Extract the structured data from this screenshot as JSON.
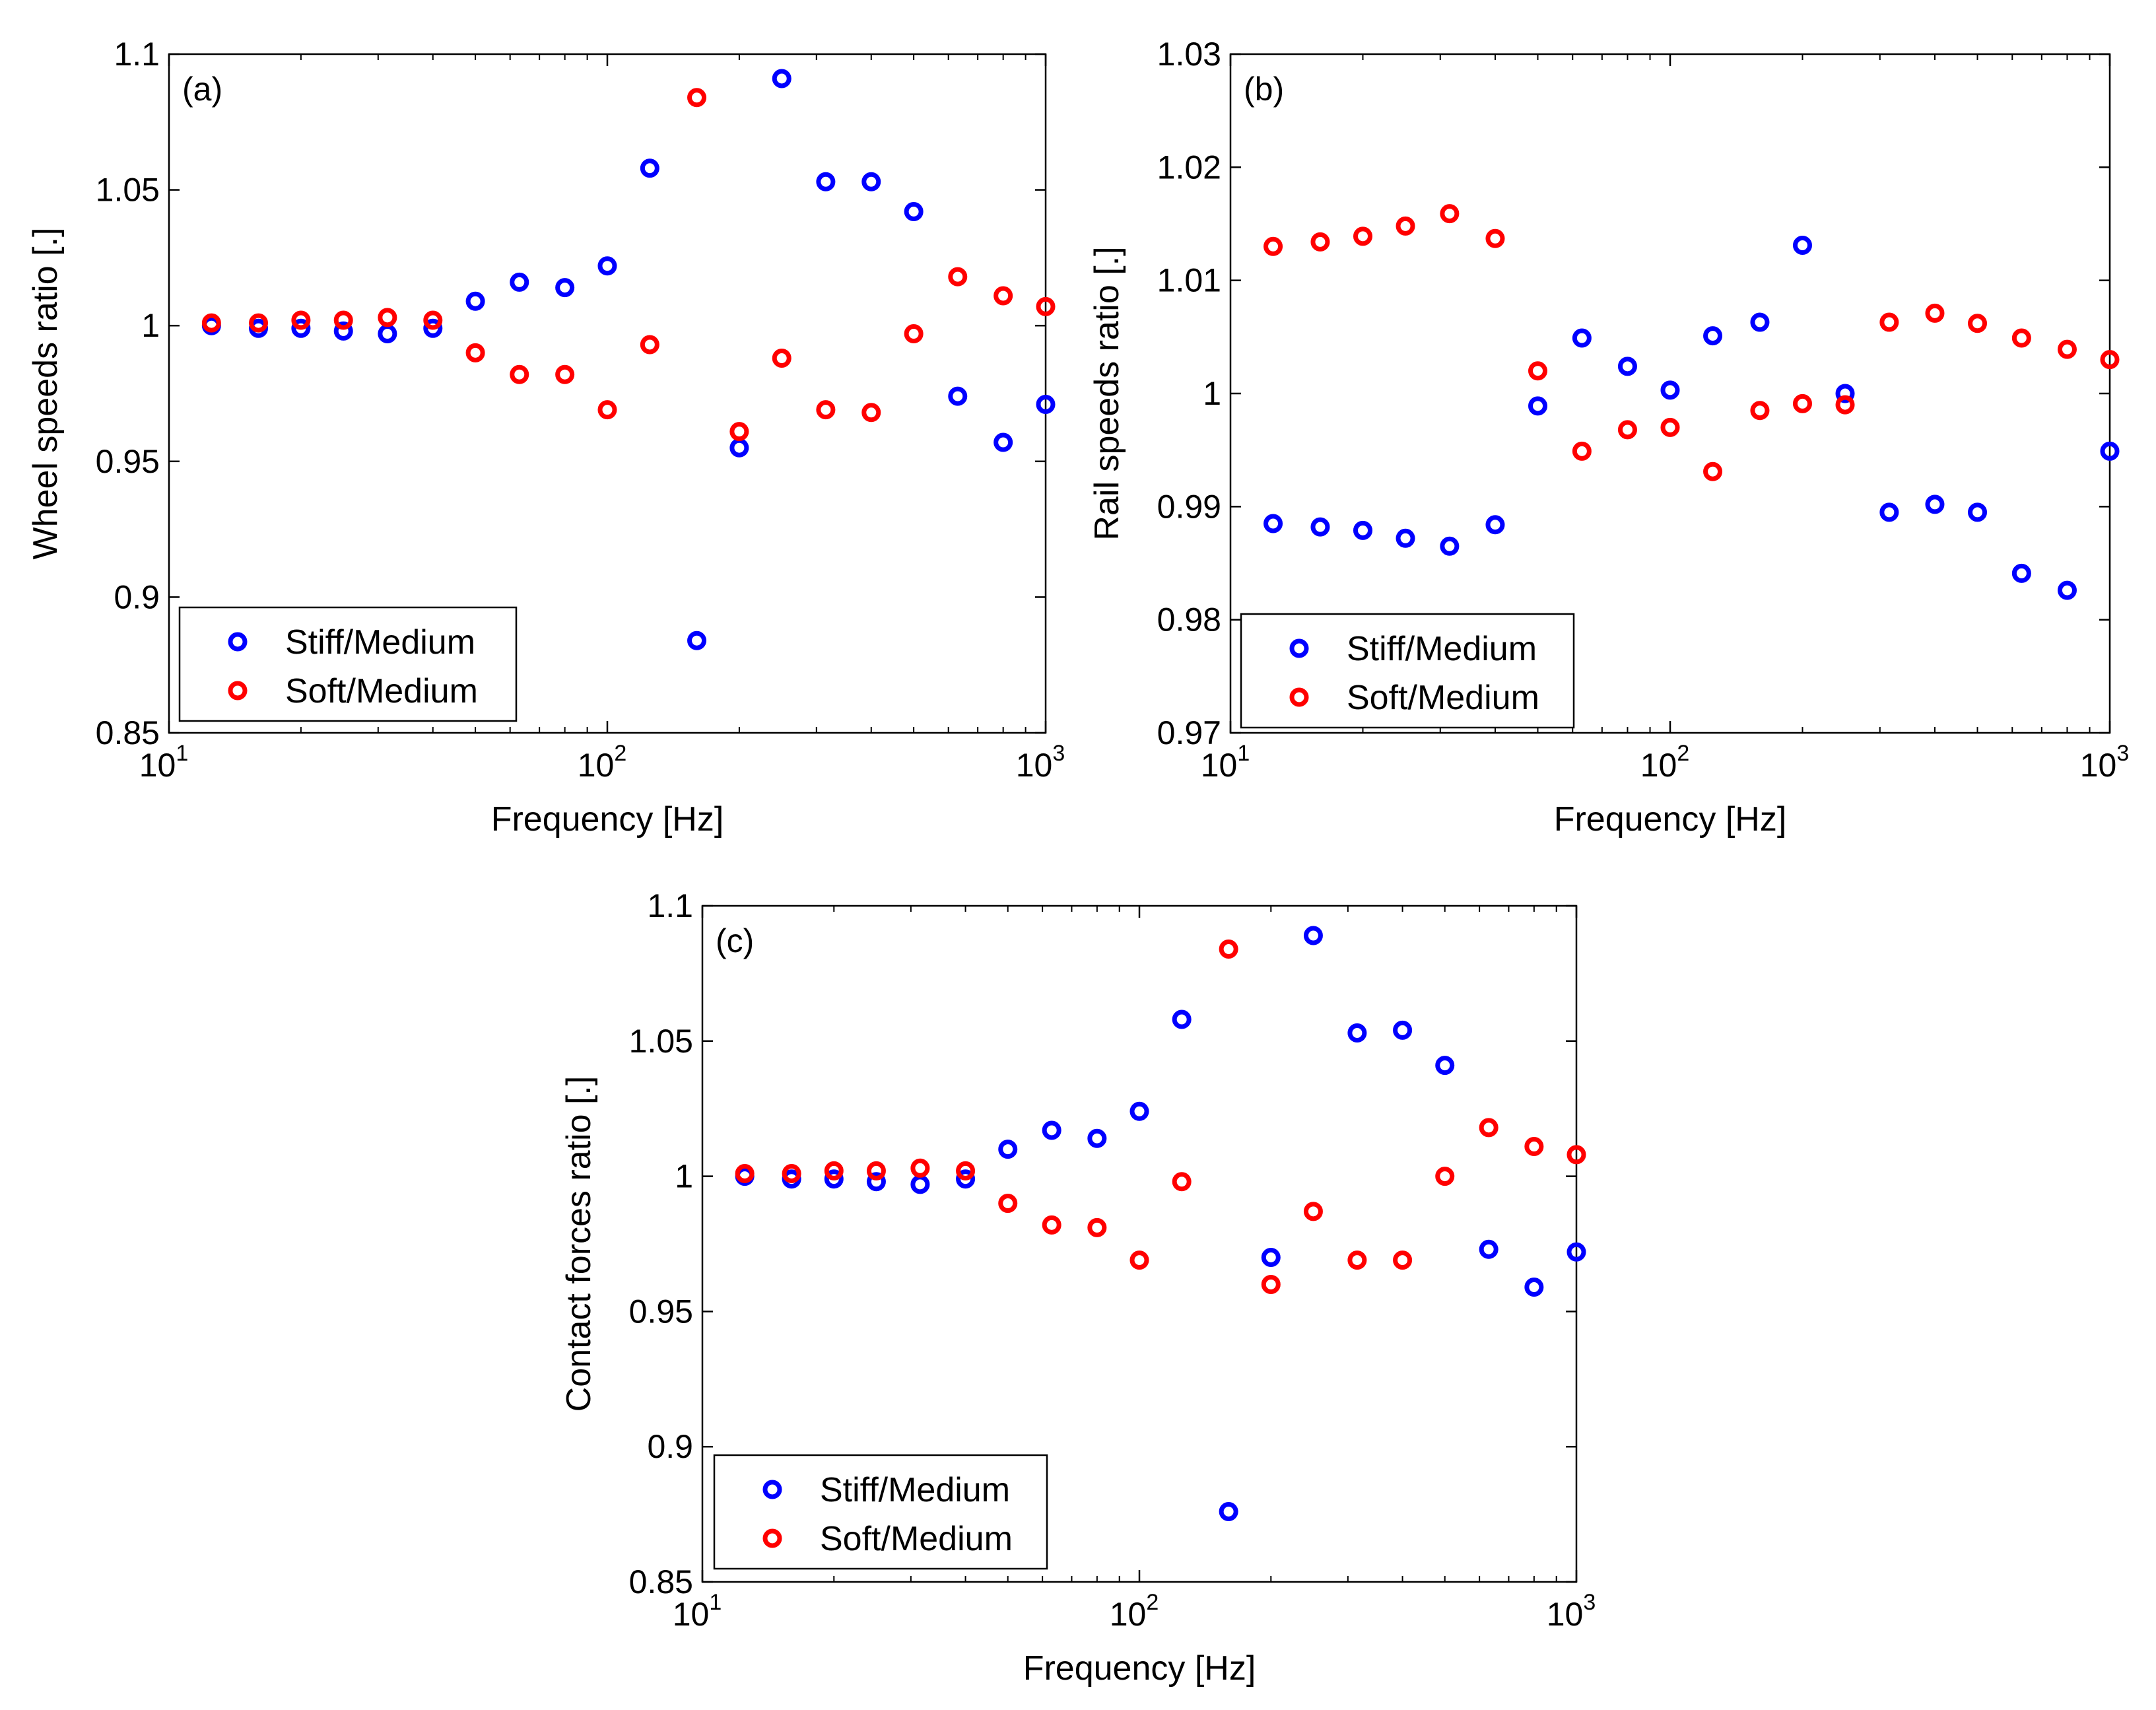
{
  "figure": {
    "colors": {
      "stiff": "#0000ff",
      "soft": "#ff0000",
      "axes": "#000000"
    }
  },
  "chart_data": [
    {
      "type": "scatter",
      "id": "a",
      "panel_label": "(a)",
      "xlabel": "Frequency  [Hz]",
      "ylabel": "Wheel speeds ratio [.]",
      "xscale": "log",
      "xlim": [
        10,
        1000
      ],
      "ylim": [
        0.85,
        1.1
      ],
      "xticks": [
        10,
        100,
        1000
      ],
      "xtick_labels": [
        {
          "base": "10",
          "exp": "1"
        },
        {
          "base": "10",
          "exp": "2"
        },
        {
          "base": "10",
          "exp": "3"
        }
      ],
      "yticks": [
        0.85,
        0.9,
        0.95,
        1,
        1.05,
        1.1
      ],
      "ytick_labels": [
        "0.85",
        "0.9",
        "0.95",
        "1",
        "1.05",
        "1.1"
      ],
      "legend": {
        "location": "lower-left",
        "entries": [
          "Stiff/Medium",
          "Soft/Medium"
        ]
      },
      "x": [
        12.5,
        16,
        20,
        25,
        31.5,
        40,
        50,
        63,
        80,
        100,
        125,
        160,
        200,
        250,
        315,
        400,
        500,
        630,
        800,
        1000
      ],
      "series": [
        {
          "name": "Stiff/Medium",
          "color_key": "stiff",
          "values": [
            1.0,
            0.999,
            0.999,
            0.998,
            0.997,
            0.999,
            1.009,
            1.016,
            1.014,
            1.022,
            1.058,
            0.884,
            0.955,
            1.091,
            1.053,
            1.053,
            1.042,
            0.974,
            0.957,
            0.971
          ]
        },
        {
          "name": "Soft/Medium",
          "color_key": "soft",
          "values": [
            1.001,
            1.001,
            1.002,
            1.002,
            1.003,
            1.002,
            0.99,
            0.982,
            0.982,
            0.969,
            0.993,
            1.084,
            0.961,
            0.988,
            0.969,
            0.968,
            0.997,
            1.018,
            1.011,
            1.007
          ]
        }
      ]
    },
    {
      "type": "scatter",
      "id": "b",
      "panel_label": "(b)",
      "xlabel": "Frequency [Hz]",
      "ylabel": "Rail speeds ratio [.]",
      "xscale": "log",
      "xlim": [
        10,
        1000
      ],
      "ylim": [
        0.97,
        1.03
      ],
      "xticks": [
        10,
        100,
        1000
      ],
      "xtick_labels": [
        {
          "base": "10",
          "exp": "1"
        },
        {
          "base": "10",
          "exp": "2"
        },
        {
          "base": "10",
          "exp": "3"
        }
      ],
      "yticks": [
        0.97,
        0.98,
        0.99,
        1,
        1.01,
        1.02,
        1.03
      ],
      "ytick_labels": [
        "0.97",
        "0.98",
        "0.99",
        "1",
        "1.01",
        "1.02",
        "1.03"
      ],
      "legend": {
        "location": "lower-left",
        "entries": [
          "Stiff/Medium",
          "Soft/Medium"
        ]
      },
      "x": [
        12.5,
        16,
        20,
        25,
        31.5,
        40,
        50,
        63,
        80,
        100,
        125,
        160,
        200,
        250,
        315,
        400,
        500,
        630,
        800,
        1000
      ],
      "series": [
        {
          "name": "Stiff/Medium",
          "color_key": "stiff",
          "values": [
            0.9885,
            0.9882,
            0.9879,
            0.9872,
            0.9865,
            0.9884,
            0.9989,
            1.0049,
            1.0024,
            1.0003,
            1.0051,
            1.0063,
            1.0131,
            1.0,
            0.9895,
            0.9902,
            0.9895,
            0.9841,
            0.9826,
            0.9949
          ]
        },
        {
          "name": "Soft/Medium",
          "color_key": "soft",
          "values": [
            1.013,
            1.0134,
            1.0139,
            1.0148,
            1.0159,
            1.0137,
            1.002,
            0.9949,
            0.9968,
            0.997,
            0.9931,
            0.9985,
            0.9991,
            0.999,
            1.0063,
            1.0071,
            1.0062,
            1.0049,
            1.0039,
            1.003
          ]
        }
      ]
    },
    {
      "type": "scatter",
      "id": "c",
      "panel_label": "(c)",
      "xlabel": "Frequency [Hz]",
      "ylabel": "Contact forces ratio [.]",
      "xscale": "log",
      "xlim": [
        10,
        1000
      ],
      "ylim": [
        0.85,
        1.1
      ],
      "xticks": [
        10,
        100,
        1000
      ],
      "xtick_labels": [
        {
          "base": "10",
          "exp": "1"
        },
        {
          "base": "10",
          "exp": "2"
        },
        {
          "base": "10",
          "exp": "3"
        }
      ],
      "yticks": [
        0.85,
        0.9,
        0.95,
        1,
        1.05,
        1.1
      ],
      "ytick_labels": [
        "0.85",
        "0.9",
        "0.95",
        "1",
        "1.05",
        "1.1"
      ],
      "legend": {
        "location": "lower-left",
        "entries": [
          "Stiff/Medium",
          "Soft/Medium"
        ]
      },
      "x": [
        12.5,
        16,
        20,
        25,
        31.5,
        40,
        50,
        63,
        80,
        100,
        125,
        160,
        200,
        250,
        315,
        400,
        500,
        630,
        800,
        1000
      ],
      "series": [
        {
          "name": "Stiff/Medium",
          "color_key": "stiff",
          "values": [
            1.0,
            0.999,
            0.999,
            0.998,
            0.997,
            0.999,
            1.01,
            1.017,
            1.014,
            1.024,
            1.058,
            0.876,
            0.97,
            1.089,
            1.053,
            1.054,
            1.041,
            0.973,
            0.959,
            0.972
          ]
        },
        {
          "name": "Soft/Medium",
          "color_key": "soft",
          "values": [
            1.001,
            1.001,
            1.002,
            1.002,
            1.003,
            1.002,
            0.99,
            0.982,
            0.981,
            0.969,
            0.998,
            1.084,
            0.96,
            0.987,
            0.969,
            0.969,
            1.0,
            1.018,
            1.011,
            1.008
          ]
        }
      ]
    }
  ]
}
